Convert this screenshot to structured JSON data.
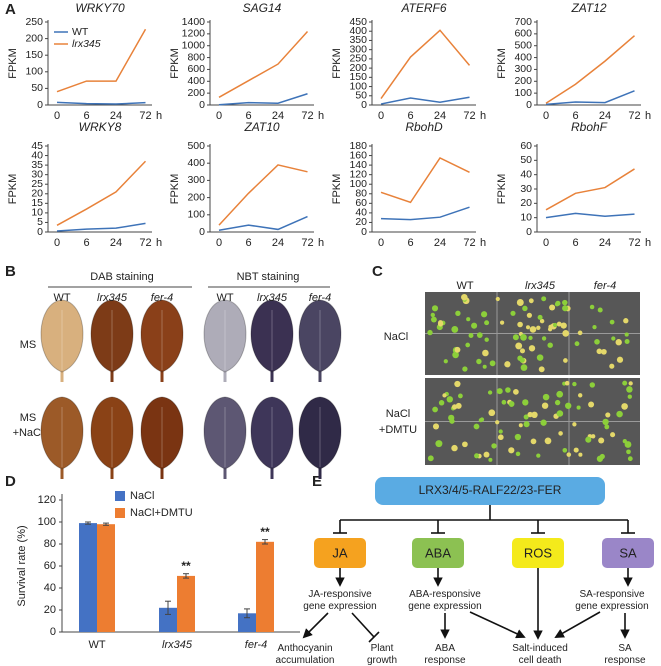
{
  "panel_labels": [
    "A",
    "B",
    "C",
    "D",
    "E"
  ],
  "chart_data": [
    {
      "type": "line",
      "title": "WRKY70",
      "y_label": "FPKM",
      "x_unit": "h",
      "categories": [
        "0",
        "6",
        "24",
        "72"
      ],
      "ylim": [
        0,
        250
      ],
      "yticks": [
        0,
        50,
        100,
        150,
        200,
        250
      ],
      "legend": "upper left",
      "series": [
        {
          "name": "WT",
          "color": "#3e73b8",
          "values": [
            8,
            4,
            3,
            7
          ]
        },
        {
          "name": "lrx345",
          "color": "#e8823a",
          "values": [
            40,
            72,
            72,
            228
          ]
        }
      ]
    },
    {
      "type": "line",
      "title": "SAG14",
      "y_label": "FPKM",
      "x_unit": "h",
      "categories": [
        "0",
        "6",
        "24",
        "72"
      ],
      "ylim": [
        0,
        1400
      ],
      "yticks": [
        0,
        200,
        400,
        600,
        800,
        1000,
        1200,
        1400
      ],
      "series": [
        {
          "name": "WT",
          "color": "#3e73b8",
          "values": [
            5,
            40,
            30,
            190
          ]
        },
        {
          "name": "lrx345",
          "color": "#e8823a",
          "values": [
            130,
            410,
            690,
            1240
          ]
        }
      ]
    },
    {
      "type": "line",
      "title": "ATERF6",
      "y_label": "FPKM",
      "x_unit": "h",
      "categories": [
        "0",
        "6",
        "24",
        "72"
      ],
      "ylim": [
        0,
        450
      ],
      "yticks": [
        0,
        50,
        100,
        150,
        200,
        250,
        300,
        350,
        400,
        450
      ],
      "series": [
        {
          "name": "WT",
          "color": "#3e73b8",
          "values": [
            5,
            38,
            15,
            42
          ]
        },
        {
          "name": "lrx345",
          "color": "#e8823a",
          "values": [
            35,
            260,
            405,
            215
          ]
        }
      ]
    },
    {
      "type": "line",
      "title": "ZAT12",
      "y_label": "FPKM",
      "x_unit": "h",
      "categories": [
        "0",
        "6",
        "24",
        "72"
      ],
      "ylim": [
        0,
        700
      ],
      "yticks": [
        0,
        100,
        200,
        300,
        400,
        500,
        600,
        700
      ],
      "series": [
        {
          "name": "WT",
          "color": "#3e73b8",
          "values": [
            5,
            25,
            20,
            120
          ]
        },
        {
          "name": "lrx345",
          "color": "#e8823a",
          "values": [
            15,
            175,
            370,
            585
          ]
        }
      ]
    },
    {
      "type": "line",
      "title": "WRKY8",
      "y_label": "FPKM",
      "x_unit": "h",
      "categories": [
        "0",
        "6",
        "24",
        "72"
      ],
      "ylim": [
        0,
        45
      ],
      "yticks": [
        0,
        5,
        10,
        15,
        20,
        25,
        30,
        35,
        40,
        45
      ],
      "series": [
        {
          "name": "WT",
          "color": "#3e73b8",
          "values": [
            0.5,
            1.5,
            2,
            4.5
          ]
        },
        {
          "name": "lrx345",
          "color": "#e8823a",
          "values": [
            3.5,
            12,
            21,
            37
          ]
        }
      ]
    },
    {
      "type": "line",
      "title": "ZAT10",
      "y_label": "FPKM",
      "x_unit": "h",
      "categories": [
        "0",
        "6",
        "24",
        "72"
      ],
      "ylim": [
        0,
        500
      ],
      "yticks": [
        0,
        100,
        200,
        300,
        400,
        500
      ],
      "series": [
        {
          "name": "WT",
          "color": "#3e73b8",
          "values": [
            10,
            40,
            15,
            90
          ]
        },
        {
          "name": "lrx345",
          "color": "#e8823a",
          "values": [
            40,
            225,
            390,
            350
          ]
        }
      ]
    },
    {
      "type": "line",
      "title": "RbohD",
      "y_label": "FPKM",
      "x_unit": "h",
      "categories": [
        "0",
        "6",
        "24",
        "72"
      ],
      "ylim": [
        0,
        180
      ],
      "yticks": [
        0,
        20,
        40,
        60,
        80,
        100,
        120,
        140,
        160,
        180
      ],
      "series": [
        {
          "name": "WT",
          "color": "#3e73b8",
          "values": [
            28,
            26,
            31,
            52
          ]
        },
        {
          "name": "lrx345",
          "color": "#e8823a",
          "values": [
            83,
            62,
            155,
            125
          ]
        }
      ]
    },
    {
      "type": "line",
      "title": "RbohF",
      "y_label": "FPKM",
      "x_unit": "h",
      "categories": [
        "0",
        "6",
        "24",
        "72"
      ],
      "ylim": [
        0,
        60
      ],
      "yticks": [
        0,
        10,
        20,
        30,
        40,
        50,
        60
      ],
      "series": [
        {
          "name": "WT",
          "color": "#3e73b8",
          "values": [
            10,
            13,
            11,
            12.5
          ]
        },
        {
          "name": "lrx345",
          "color": "#e8823a",
          "values": [
            15.5,
            27,
            31,
            44
          ]
        }
      ]
    },
    {
      "type": "bar",
      "y_label": "Survival rate (%)",
      "categories": [
        "WT",
        "lrx345",
        "fer-4"
      ],
      "ylim": [
        0,
        120
      ],
      "yticks": [
        0,
        20,
        40,
        60,
        80,
        100,
        120
      ],
      "legend": "upper center",
      "series": [
        {
          "name": "NaCl",
          "color": "#4472c4",
          "values": [
            99,
            22,
            17
          ],
          "errors": [
            1,
            6,
            4
          ]
        },
        {
          "name": "NaCl+DMTU",
          "color": "#ed7d31",
          "values": [
            98,
            51,
            82
          ],
          "errors": [
            1,
            2,
            2
          ],
          "significance": [
            null,
            "**",
            "**"
          ]
        }
      ]
    }
  ],
  "panel_b": {
    "groups": [
      "DAB staining",
      "NBT staining"
    ],
    "columns": [
      "WT",
      "lrx345",
      "fer-4"
    ],
    "rows": [
      [
        "MS"
      ],
      [
        "MS",
        "+NaCl"
      ]
    ]
  },
  "panel_c": {
    "columns": [
      "WT",
      "lrx345",
      "fer-4"
    ],
    "rows": [
      [
        "NaCl"
      ],
      [
        "NaCl",
        "+DMTU"
      ]
    ]
  },
  "diagram": {
    "receptor": "LRX3/4/5-RALF22/23-FER",
    "hormones": [
      "JA",
      "ABA",
      "ROS",
      "SA"
    ],
    "gene_expression": [
      [
        "JA-responsive",
        "gene expression"
      ],
      [
        "ABA-responsive",
        "gene expression"
      ],
      [
        "SA-responsive",
        "gene expression"
      ]
    ],
    "outcomes": [
      [
        "Anthocyanin",
        "accumulation"
      ],
      [
        "Plant",
        "growth"
      ],
      [
        "ABA",
        "response"
      ],
      [
        "Salt-induced",
        "cell death"
      ],
      [
        "SA",
        "response"
      ]
    ]
  }
}
